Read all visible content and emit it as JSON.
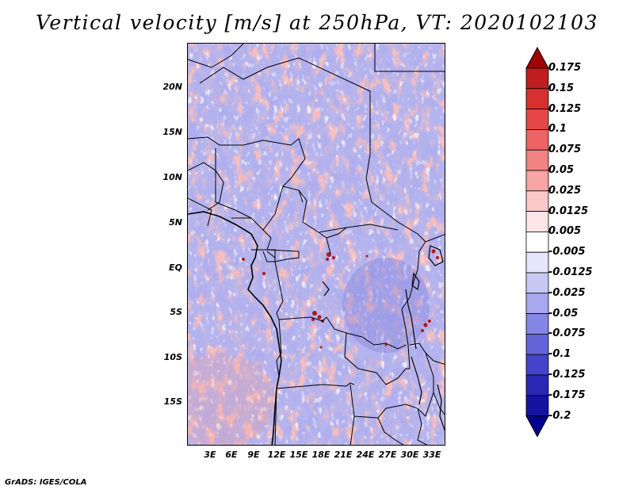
{
  "title": "Vertical velocity [m/s] at 250hPa, VT: 2020102103",
  "credit": "GrADS: IGES/COLA",
  "map": {
    "lat_labels": [
      "20N",
      "15N",
      "10N",
      "5N",
      "EQ",
      "5S",
      "10S",
      "15S"
    ],
    "lon_labels": [
      "3E",
      "6E",
      "9E",
      "12E",
      "15E",
      "18E",
      "21E",
      "24E",
      "27E",
      "30E",
      "33E"
    ]
  },
  "colorbar": {
    "labels": [
      "0.175",
      "0.15",
      "0.125",
      "0.1",
      "0.075",
      "0.05",
      "0.025",
      "0.0125",
      "0.005",
      "-0.005",
      "-0.0125",
      "-0.025",
      "-0.05",
      "-0.075",
      "-0.1",
      "-0.125",
      "-0.175",
      "-0.2"
    ],
    "colors": [
      "#a00000",
      "#c01e1e",
      "#d83030",
      "#e64848",
      "#ee6464",
      "#f38282",
      "#f7a4a4",
      "#fbc8c8",
      "#fde6e6",
      "#ffffff",
      "#e6e6fb",
      "#c8c8f5",
      "#a8a8ee",
      "#8686e4",
      "#6464d8",
      "#4444c8",
      "#2828b4",
      "#1414a0",
      "#000090"
    ]
  }
}
